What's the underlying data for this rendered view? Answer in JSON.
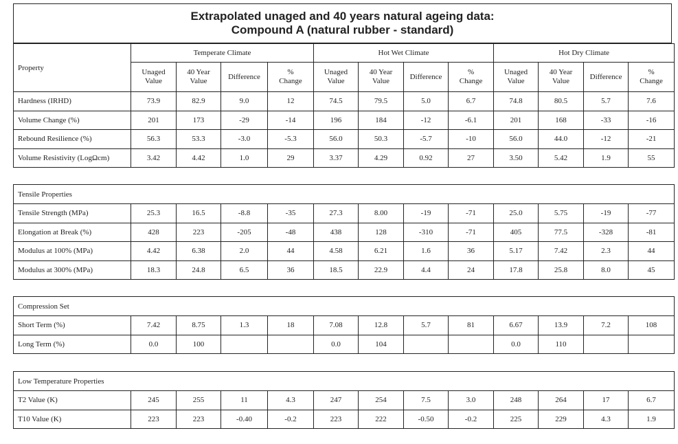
{
  "title_line1": "Extrapolated unaged and 40 years natural ageing data:",
  "title_line2": "Compound A (natural rubber - standard)",
  "header": {
    "property": "Property",
    "climates": [
      "Temperate Climate",
      "Hot Wet Climate",
      "Hot Dry Climate"
    ],
    "subcols": [
      {
        "l1": "Unaged",
        "l2": "Value"
      },
      {
        "l1": "40 Year",
        "l2": "Value"
      },
      {
        "l1": "Difference",
        "l2": ""
      },
      {
        "l1": "%",
        "l2": "Change"
      }
    ]
  },
  "blocks": [
    {
      "heading": "",
      "rows": [
        {
          "label": "Hardness (IRHD)",
          "values": [
            "73.9",
            "82.9",
            "9.0",
            "12",
            "74.5",
            "79.5",
            "5.0",
            "6.7",
            "74.8",
            "80.5",
            "5.7",
            "7.6"
          ]
        },
        {
          "label": "Volume Change (%)",
          "values": [
            "201",
            "173",
            "-29",
            "-14",
            "196",
            "184",
            "-12",
            "-6.1",
            "201",
            "168",
            "-33",
            "-16"
          ]
        },
        {
          "label": "Rebound Resilience (%)",
          "values": [
            "56.3",
            "53.3",
            "-3.0",
            "-5.3",
            "56.0",
            "50.3",
            "-5.7",
            "-10",
            "56.0",
            "44.0",
            "-12",
            "-21"
          ]
        },
        {
          "label": "Volume Resistivity (LogΩcm)",
          "values": [
            "3.42",
            "4.42",
            "1.0",
            "29",
            "3.37",
            "4.29",
            "0.92",
            "27",
            "3.50",
            "5.42",
            "1.9",
            "55"
          ]
        }
      ]
    },
    {
      "heading": "Tensile Properties",
      "rows": [
        {
          "label": "Tensile Strength (MPa)",
          "values": [
            "25.3",
            "16.5",
            "-8.8",
            "-35",
            "27.3",
            "8.00",
            "-19",
            "-71",
            "25.0",
            "5.75",
            "-19",
            "-77"
          ]
        },
        {
          "label": "Elongation at Break (%)",
          "values": [
            "428",
            "223",
            "-205",
            "-48",
            "438",
            "128",
            "-310",
            "-71",
            "405",
            "77.5",
            "-328",
            "-81"
          ]
        },
        {
          "label": "Modulus at 100% (MPa)",
          "values": [
            "4.42",
            "6.38",
            "2.0",
            "44",
            "4.58",
            "6.21",
            "1.6",
            "36",
            "5.17",
            "7.42",
            "2.3",
            "44"
          ]
        },
        {
          "label": "Modulus at 300% (MPa)",
          "values": [
            "18.3",
            "24.8",
            "6.5",
            "36",
            "18.5",
            "22.9",
            "4.4",
            "24",
            "17.8",
            "25.8",
            "8.0",
            "45"
          ]
        }
      ]
    },
    {
      "heading": "Compression Set",
      "rows": [
        {
          "label": "Short Term (%)",
          "values": [
            "7.42",
            "8.75",
            "1.3",
            "18",
            "7.08",
            "12.8",
            "5.7",
            "81",
            "6.67",
            "13.9",
            "7.2",
            "108"
          ]
        },
        {
          "label": "Long Term (%)",
          "values": [
            "0.0",
            "100",
            "",
            "",
            "0.0",
            "104",
            "",
            "",
            "0.0",
            "110",
            "",
            ""
          ]
        }
      ]
    },
    {
      "heading": "Low Temperature Properties",
      "rows": [
        {
          "label": "T2 Value (K)",
          "values": [
            "245",
            "255",
            "11",
            "4.3",
            "247",
            "254",
            "7.5",
            "3.0",
            "248",
            "264",
            "17",
            "6.7"
          ]
        },
        {
          "label": "T10 Value (K)",
          "values": [
            "223",
            "223",
            "-0.40",
            "-0.2",
            "223",
            "222",
            "-0.50",
            "-0.2",
            "225",
            "229",
            "4.3",
            "1.9"
          ]
        }
      ]
    }
  ]
}
